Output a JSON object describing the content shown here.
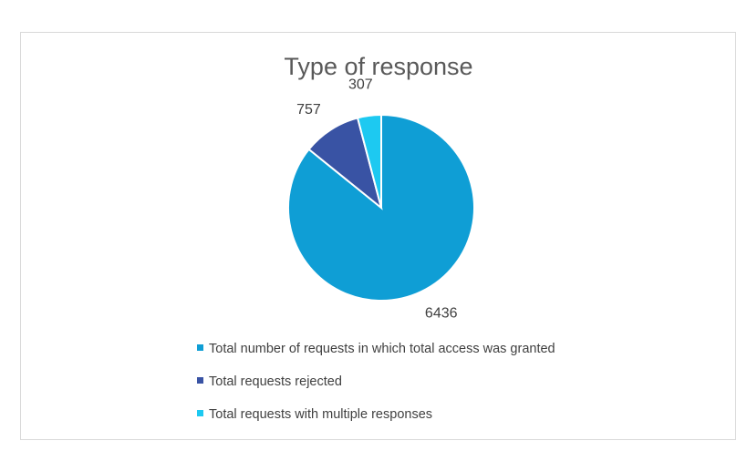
{
  "chart_data": {
    "type": "pie",
    "title": "Type of response",
    "categories": [
      "Total number of requests in which total access was granted",
      "Total requests rejected",
      "Total requests with multiple responses"
    ],
    "values": [
      6436,
      757,
      307
    ],
    "colors": [
      "#0f9ed5",
      "#3953a4",
      "#1dc9f1"
    ],
    "data_labels": [
      "6436",
      "757",
      "307"
    ],
    "legend_position": "bottom",
    "start_angle": "12 o'clock",
    "direction": "clockwise"
  }
}
